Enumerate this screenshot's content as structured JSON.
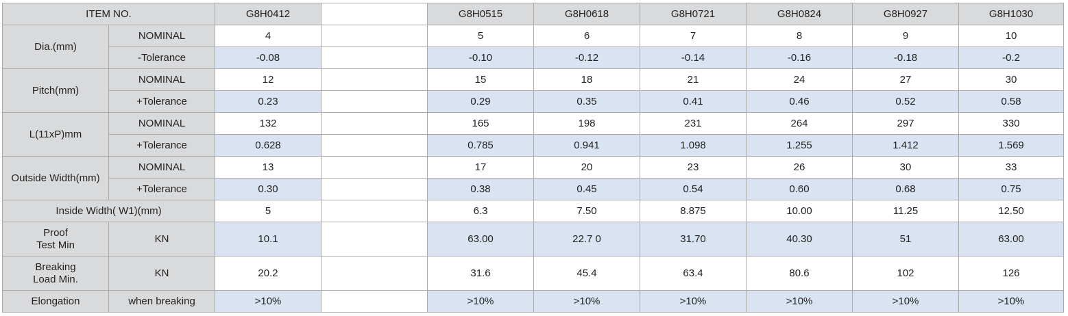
{
  "header": {
    "item_label": "ITEM NO.",
    "models": [
      "G8H0412",
      "",
      "G8H0515",
      "G8H0618",
      "G8H0721",
      "G8H0824",
      "G8H0927",
      "G8H1030"
    ]
  },
  "groups": [
    {
      "label": "Dia.(mm)",
      "rows": [
        {
          "sub": "NOMINAL",
          "values": [
            "4",
            "",
            "5",
            "6",
            "7",
            "8",
            "9",
            "10"
          ]
        },
        {
          "sub": "-Tolerance",
          "values": [
            "-0.08",
            "",
            "-0.10",
            "-0.12",
            "-0.14",
            "-0.16",
            "-0.18",
            "-0.2"
          ]
        }
      ]
    },
    {
      "label": "Pitch(mm)",
      "rows": [
        {
          "sub": "NOMINAL",
          "values": [
            "12",
            "",
            "15",
            "18",
            "21",
            "24",
            "27",
            "30"
          ]
        },
        {
          "sub": "+Tolerance",
          "values": [
            "0.23",
            "",
            "0.29",
            "0.35",
            "0.41",
            "0.46",
            "0.52",
            "0.58"
          ]
        }
      ]
    },
    {
      "label": "L(11xP)mm",
      "rows": [
        {
          "sub": "NOMINAL",
          "values": [
            "132",
            "",
            "165",
            "198",
            "231",
            "264",
            "297",
            "330"
          ]
        },
        {
          "sub": "+Tolerance",
          "values": [
            "0.628",
            "",
            "0.785",
            "0.941",
            "1.098",
            "1.255",
            "1.412",
            "1.569"
          ]
        }
      ]
    },
    {
      "label": "Outside Width(mm)",
      "rows": [
        {
          "sub": "NOMINAL",
          "values": [
            "13",
            "",
            "17",
            "20",
            "23",
            "26",
            "30",
            "33"
          ]
        },
        {
          "sub": "+Tolerance",
          "values": [
            "0.30",
            "",
            "0.38",
            "0.45",
            "0.54",
            "0.60",
            "0.68",
            "0.75"
          ]
        }
      ]
    }
  ],
  "inside_width": {
    "label": "Inside Width( W1)(mm)",
    "values": [
      "5",
      "",
      "6.3",
      "7.50",
      "8.875",
      "10.00",
      "11.25",
      "12.50"
    ]
  },
  "proof_test": {
    "label_line1": "Proof",
    "label_line2": "Test Min",
    "unit": "KN",
    "values": [
      "10.1",
      "",
      "63.00",
      "22.7 0",
      "31.70",
      "40.30",
      "51",
      "63.00"
    ]
  },
  "breaking_load": {
    "label_line1": "Breaking",
    "label_line2": "Load Min.",
    "unit": "KN",
    "values": [
      "20.2",
      "",
      "31.6",
      "45.4",
      "63.4",
      "80.6",
      "102",
      "126"
    ]
  },
  "elongation": {
    "label": "Elongation",
    "unit": "when breaking",
    "values": [
      ">10%",
      "",
      ">10%",
      ">10%",
      ">10%",
      ">10%",
      ">10%",
      ">10%"
    ]
  },
  "colors": {
    "header_bg": "#d9dadc",
    "shaded_row_bg": "#dae3f1",
    "border": "#a9a9a9"
  }
}
